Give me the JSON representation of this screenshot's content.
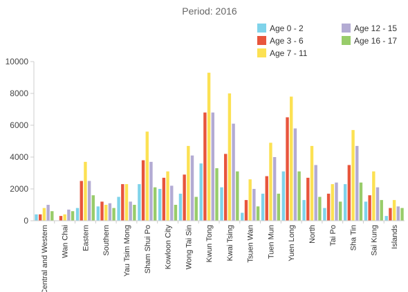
{
  "chart_data": {
    "type": "bar",
    "title": "Period: 2016",
    "xlabel": "",
    "ylabel": "",
    "ylim": [
      0,
      10000
    ],
    "yticks": [
      0,
      2000,
      4000,
      6000,
      8000,
      10000
    ],
    "ytick_labels": [
      "0",
      "2000",
      "4000",
      "6000",
      "8000",
      "10000"
    ],
    "grid": false,
    "legend_position": "top-right",
    "categories": [
      "Central and Western",
      "Wan Chai",
      "Eastern",
      "Southern",
      "Yau Tsim Mong",
      "Sham Shui Po",
      "Kowloon City",
      "Wong Tai Sin",
      "Kwun Tong",
      "Kwai Tsing",
      "Tsuen Wan",
      "Tuen Mun",
      "Yuen Long",
      "North",
      "Tai Po",
      "Sha Tin",
      "Sai Kung",
      "Islands"
    ],
    "series": [
      {
        "name": "Age 0 - 2",
        "color": "#7fd3ea",
        "values": [
          400,
          0,
          800,
          900,
          1500,
          2300,
          2000,
          1700,
          3600,
          2100,
          500,
          1700,
          3100,
          1300,
          800,
          2300,
          1200,
          300
        ]
      },
      {
        "name": "Age 3 - 6",
        "color": "#e8553c",
        "values": [
          400,
          300,
          2500,
          1200,
          2300,
          3800,
          2700,
          2900,
          6800,
          4200,
          1300,
          2800,
          6500,
          2700,
          1700,
          3500,
          1600,
          800
        ]
      },
      {
        "name": "Age 7 - 11",
        "color": "#fce153",
        "values": [
          800,
          400,
          3700,
          1000,
          2300,
          5600,
          3100,
          4700,
          9300,
          8000,
          2600,
          4900,
          7800,
          4700,
          2300,
          5700,
          3100,
          1300
        ]
      },
      {
        "name": "Age 12 - 15",
        "color": "#b3abd3",
        "values": [
          1000,
          700,
          2500,
          1100,
          1200,
          3700,
          2200,
          4100,
          6800,
          6100,
          2000,
          4000,
          5800,
          3500,
          2400,
          4700,
          2100,
          900
        ]
      },
      {
        "name": "Age 16 - 17",
        "color": "#98cc6a",
        "values": [
          600,
          600,
          1600,
          800,
          1000,
          2100,
          1000,
          1500,
          3300,
          3100,
          900,
          1700,
          3100,
          1500,
          1200,
          2400,
          1300,
          800
        ]
      }
    ]
  }
}
